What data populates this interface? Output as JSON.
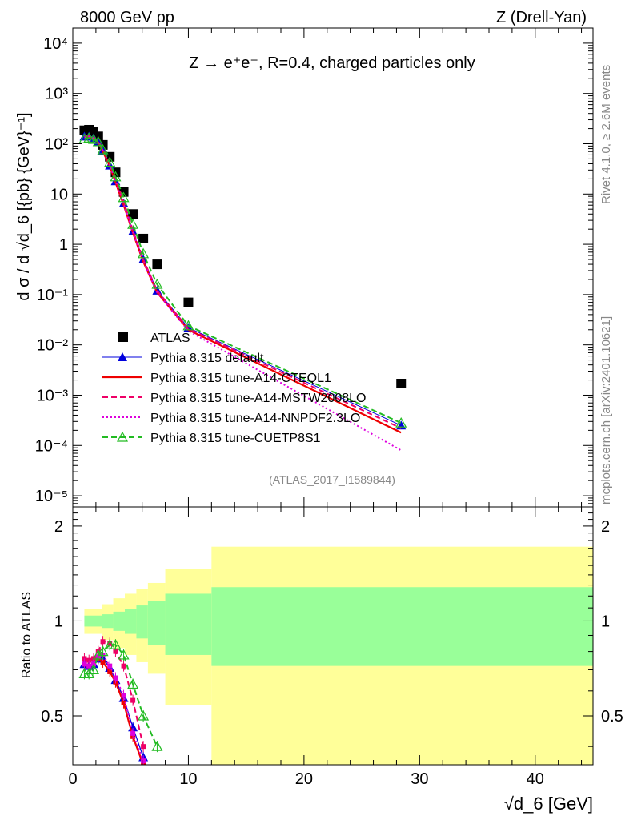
{
  "header": {
    "left": "8000 GeV pp",
    "right": "Z (Drell-Yan)"
  },
  "side_labels": {
    "rivet": "Rivet 4.1.0, ≥ 2.6M events",
    "mcplots": "mcplots.cern.ch [arXiv:2401.10621]"
  },
  "chart_data": [
    {
      "type": "scatter",
      "title": "Z → e⁺e⁻, R=0.4, charged particles only",
      "ylabel": "d σ / d √d_6 [{pb} {GeV}⁻¹]",
      "y_scale": "log",
      "ylim": [
        6e-06,
        20000
      ],
      "xlim": [
        0,
        45
      ],
      "y_ticks": [
        "10⁴",
        "10³",
        "10²",
        "10",
        "1",
        "10⁻¹",
        "10⁻²",
        "10⁻³",
        "10⁻⁴",
        "10⁻⁵"
      ],
      "watermark": "(ATLAS_2017_I1589844)",
      "legend_position": "bottom-left",
      "series": [
        {
          "name": "ATLAS",
          "color": "#000000",
          "style": "marker-square",
          "points": [
            [
              1.0,
              185
            ],
            [
              1.4,
              190
            ],
            [
              1.8,
              175
            ],
            [
              2.2,
              140
            ],
            [
              2.6,
              95
            ],
            [
              3.2,
              55
            ],
            [
              3.7,
              27
            ],
            [
              4.4,
              11
            ],
            [
              5.2,
              4.0
            ],
            [
              6.1,
              1.3
            ],
            [
              7.3,
              0.4
            ],
            [
              10.0,
              0.07
            ],
            [
              28.4,
              0.0017
            ]
          ]
        },
        {
          "name": "Pythia 8.315 default",
          "color": "#0000dd",
          "style": "line-triangle",
          "points": [
            [
              1.0,
              140
            ],
            [
              1.4,
              140
            ],
            [
              1.8,
              130
            ],
            [
              2.2,
              108
            ],
            [
              2.6,
              72
            ],
            [
              3.2,
              37
            ],
            [
              3.7,
              18
            ],
            [
              4.4,
              6.5
            ],
            [
              5.2,
              1.8
            ],
            [
              6.1,
              0.5
            ],
            [
              7.3,
              0.12
            ],
            [
              10.0,
              0.022
            ],
            [
              28.4,
              0.00025
            ]
          ]
        },
        {
          "name": "Pythia 8.315 tune-A14-CTEQL1",
          "color": "#ee0000",
          "style": "solid",
          "points": [
            [
              1.0,
              135
            ],
            [
              1.4,
              138
            ],
            [
              1.8,
              128
            ],
            [
              2.2,
              106
            ],
            [
              2.6,
              70
            ],
            [
              3.2,
              36
            ],
            [
              3.7,
              17
            ],
            [
              4.4,
              6.0
            ],
            [
              5.2,
              1.7
            ],
            [
              6.1,
              0.45
            ],
            [
              7.3,
              0.11
            ],
            [
              10.0,
              0.02
            ],
            [
              28.4,
              0.00018
            ]
          ]
        },
        {
          "name": "Pythia 8.315 tune-A14-MSTW2008LO",
          "color": "#ee0066",
          "style": "dashed",
          "points": [
            [
              1.0,
              140
            ],
            [
              1.4,
              143
            ],
            [
              1.8,
              132
            ],
            [
              2.2,
              112
            ],
            [
              2.6,
              80
            ],
            [
              3.2,
              42
            ],
            [
              3.7,
              20
            ],
            [
              4.4,
              7.0
            ],
            [
              5.2,
              1.9
            ],
            [
              6.1,
              0.5
            ],
            [
              7.3,
              0.12
            ],
            [
              10.0,
              0.021
            ],
            [
              28.4,
              0.00022
            ]
          ]
        },
        {
          "name": "Pythia 8.315 tune-A14-NNPDF2.3LO",
          "color": "#dd00dd",
          "style": "dotted",
          "points": [
            [
              1.0,
              135
            ],
            [
              1.4,
              138
            ],
            [
              1.8,
              128
            ],
            [
              2.2,
              108
            ],
            [
              2.6,
              74
            ],
            [
              3.2,
              38
            ],
            [
              3.7,
              18
            ],
            [
              4.4,
              6.3
            ],
            [
              5.2,
              1.75
            ],
            [
              6.1,
              0.46
            ],
            [
              7.3,
              0.11
            ],
            [
              10.0,
              0.019
            ],
            [
              28.4,
              8e-05
            ]
          ]
        },
        {
          "name": "Pythia 8.315 tune-CUETP8S1",
          "color": "#22bb22",
          "style": "dashed-open-triangle",
          "points": [
            [
              1.0,
              125
            ],
            [
              1.4,
              130
            ],
            [
              1.8,
              122
            ],
            [
              2.2,
              110
            ],
            [
              2.6,
              76
            ],
            [
              3.2,
              43
            ],
            [
              3.7,
              22
            ],
            [
              4.4,
              8.5
            ],
            [
              5.2,
              2.5
            ],
            [
              6.1,
              0.65
            ],
            [
              7.3,
              0.16
            ],
            [
              10.0,
              0.024
            ],
            [
              28.4,
              0.00028
            ]
          ]
        }
      ]
    },
    {
      "type": "line",
      "ylabel": "Ratio to ATLAS",
      "xlabel": "√d_6 [GeV]",
      "xlim": [
        0,
        45
      ],
      "ylim": [
        0.35,
        2.3
      ],
      "x_ticks": [
        0,
        10,
        20,
        30,
        40
      ],
      "y_ticks": [
        0.5,
        1,
        2
      ],
      "bands": {
        "edges": [
          1.0,
          2.5,
          3.5,
          4.5,
          5.5,
          6.5,
          8.0,
          12.0,
          45.0
        ],
        "green": [
          0.04,
          0.05,
          0.07,
          0.09,
          0.12,
          0.16,
          0.22,
          0.28
        ],
        "yellow": [
          0.09,
          0.13,
          0.18,
          0.22,
          0.26,
          0.32,
          0.46,
          0.72
        ],
        "green_color": "#99ff99",
        "yellow_color": "#ffff99"
      },
      "series": [
        {
          "name": "Pythia 8.315 default",
          "color": "#0000dd",
          "points": [
            [
              1.0,
              0.73
            ],
            [
              1.4,
              0.72
            ],
            [
              1.8,
              0.73
            ],
            [
              2.2,
              0.76
            ],
            [
              2.6,
              0.76
            ],
            [
              3.2,
              0.71
            ],
            [
              3.7,
              0.65
            ],
            [
              4.4,
              0.57
            ],
            [
              5.2,
              0.46
            ],
            [
              6.1,
              0.37
            ]
          ]
        },
        {
          "name": "Pythia 8.315 tune-A14-CTEQL1",
          "color": "#ee0000",
          "points": [
            [
              1.0,
              0.73
            ],
            [
              1.4,
              0.72
            ],
            [
              1.8,
              0.73
            ],
            [
              2.2,
              0.76
            ],
            [
              2.6,
              0.74
            ],
            [
              3.2,
              0.69
            ],
            [
              3.7,
              0.64
            ],
            [
              4.4,
              0.55
            ],
            [
              5.2,
              0.43
            ],
            [
              6.1,
              0.35
            ]
          ]
        },
        {
          "name": "Pythia 8.315 tune-A14-MSTW2008LO",
          "color": "#ee0066",
          "points": [
            [
              1.0,
              0.76
            ],
            [
              1.4,
              0.75
            ],
            [
              1.8,
              0.76
            ],
            [
              2.2,
              0.8
            ],
            [
              2.6,
              0.86
            ],
            [
              3.2,
              0.85
            ],
            [
              3.7,
              0.8
            ],
            [
              4.4,
              0.72
            ],
            [
              5.2,
              0.56
            ],
            [
              6.1,
              0.4
            ]
          ]
        },
        {
          "name": "Pythia 8.315 tune-A14-NNPDF2.3LO",
          "color": "#dd00dd",
          "points": [
            [
              1.0,
              0.73
            ],
            [
              1.4,
              0.72
            ],
            [
              1.8,
              0.73
            ],
            [
              2.2,
              0.77
            ],
            [
              2.6,
              0.78
            ],
            [
              3.2,
              0.72
            ],
            [
              3.7,
              0.66
            ],
            [
              4.4,
              0.58
            ],
            [
              5.2,
              0.44
            ],
            [
              6.1,
              0.36
            ]
          ]
        },
        {
          "name": "Pythia 8.315 tune-CUETP8S1",
          "color": "#22bb22",
          "points": [
            [
              1.0,
              0.68
            ],
            [
              1.4,
              0.68
            ],
            [
              1.8,
              0.7
            ],
            [
              2.2,
              0.78
            ],
            [
              2.6,
              0.8
            ],
            [
              3.2,
              0.84
            ],
            [
              3.7,
              0.84
            ],
            [
              4.4,
              0.78
            ],
            [
              5.2,
              0.63
            ],
            [
              6.1,
              0.5
            ],
            [
              7.3,
              0.4
            ]
          ]
        }
      ]
    }
  ]
}
